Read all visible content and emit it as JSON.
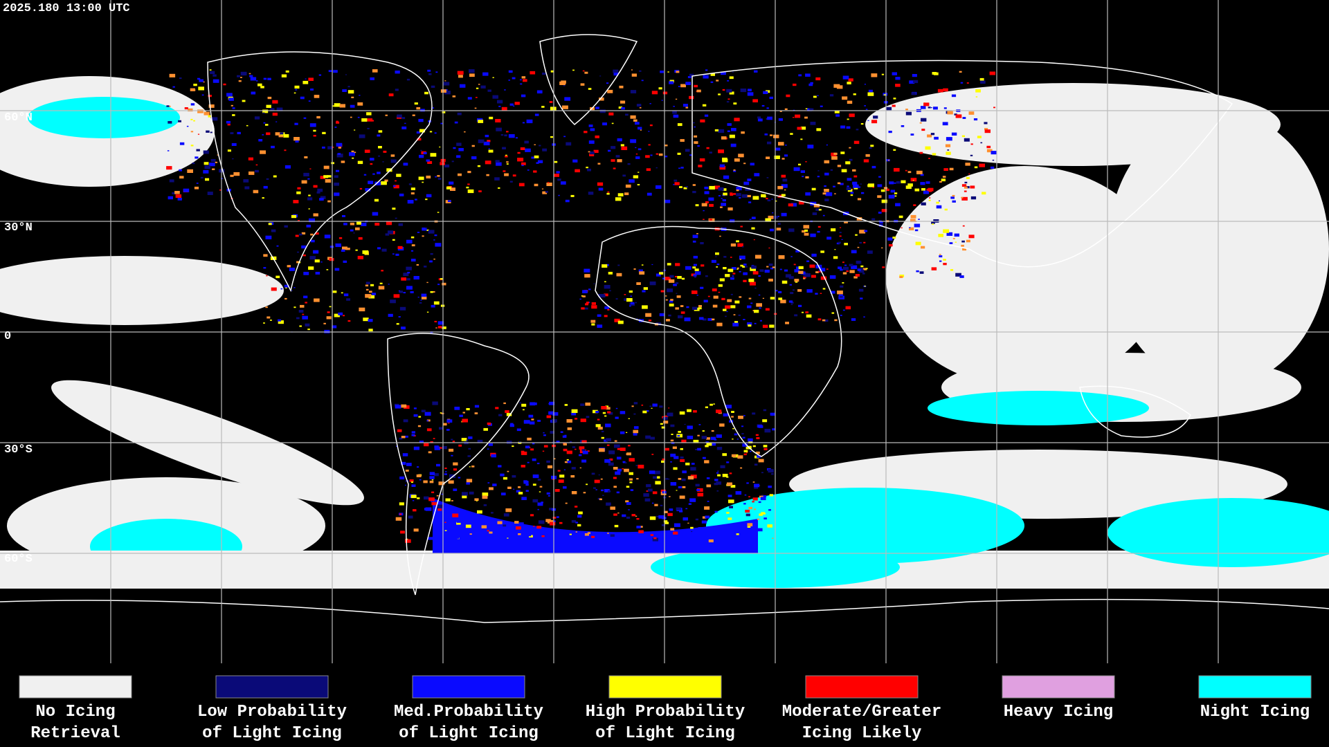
{
  "header": {
    "timestamp": "2025.180 13:00 UTC"
  },
  "map": {
    "latitude_labels": [
      "60°N",
      "30°N",
      "0",
      "30°S",
      "60°S"
    ]
  },
  "legend": {
    "items": [
      {
        "lines": [
          "No Icing",
          "Retrieval"
        ],
        "color": "#f0f0f0"
      },
      {
        "lines": [
          "Low Probability",
          "of Light Icing"
        ],
        "color": "#0a0a78"
      },
      {
        "lines": [
          "Med.Probability",
          "of Light Icing"
        ],
        "color": "#0a0aff"
      },
      {
        "lines": [
          "High Probability",
          "of Light Icing"
        ],
        "color": "#ffff00"
      },
      {
        "lines": [
          "Moderate/Greater",
          "Icing Likely"
        ],
        "color": "#ff0000"
      },
      {
        "lines": [
          "Heavy Icing"
        ],
        "color": "#e0a0e0"
      },
      {
        "lines": [
          "Night Icing"
        ],
        "color": "#00ffff"
      }
    ]
  }
}
